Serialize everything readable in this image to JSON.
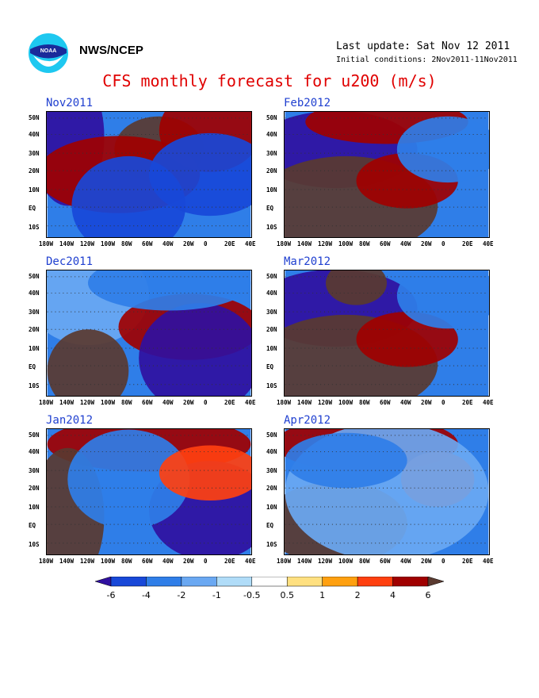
{
  "header": {
    "org": "NWS/NCEP",
    "last_update": "Last update: Sat Nov 12 2011",
    "initial_conditions": "Initial conditions: 2Nov2011-11Nov2011",
    "title": "CFS monthly forecast for u200 (m/s)"
  },
  "logo": {
    "icon": "noaa-logo-icon"
  },
  "chart_data": {
    "type": "heatmap",
    "variable": "u200",
    "units": "m/s",
    "panels": [
      {
        "label": "Nov2011"
      },
      {
        "label": "Dec2011"
      },
      {
        "label": "Jan2012"
      },
      {
        "label": "Feb2012"
      },
      {
        "label": "Mar2012"
      },
      {
        "label": "Apr2012"
      }
    ],
    "x_ticks": [
      "180W",
      "140W",
      "120W",
      "100W",
      "80W",
      "60W",
      "40W",
      "20W",
      "0",
      "20E",
      "40E"
    ],
    "y_ticks": [
      "50N",
      "40N",
      "30N",
      "20N",
      "10N",
      "EQ",
      "10S"
    ],
    "colorbar": {
      "levels": [
        -6,
        -4,
        -2,
        -1,
        -0.5,
        0.5,
        1,
        2,
        4,
        6
      ],
      "labels": [
        "-6",
        "-4",
        "-2",
        "-1",
        "-0.5",
        "0.5",
        "1",
        "2",
        "4",
        "6"
      ],
      "colors": [
        "#3010a0",
        "#1848d8",
        "#2f7ee8",
        "#6aa8f2",
        "#b0dcf8",
        "#ffffff",
        "#ffe080",
        "#ffa010",
        "#ff4010",
        "#a00000",
        "#5a3a30"
      ]
    },
    "grid": true
  }
}
